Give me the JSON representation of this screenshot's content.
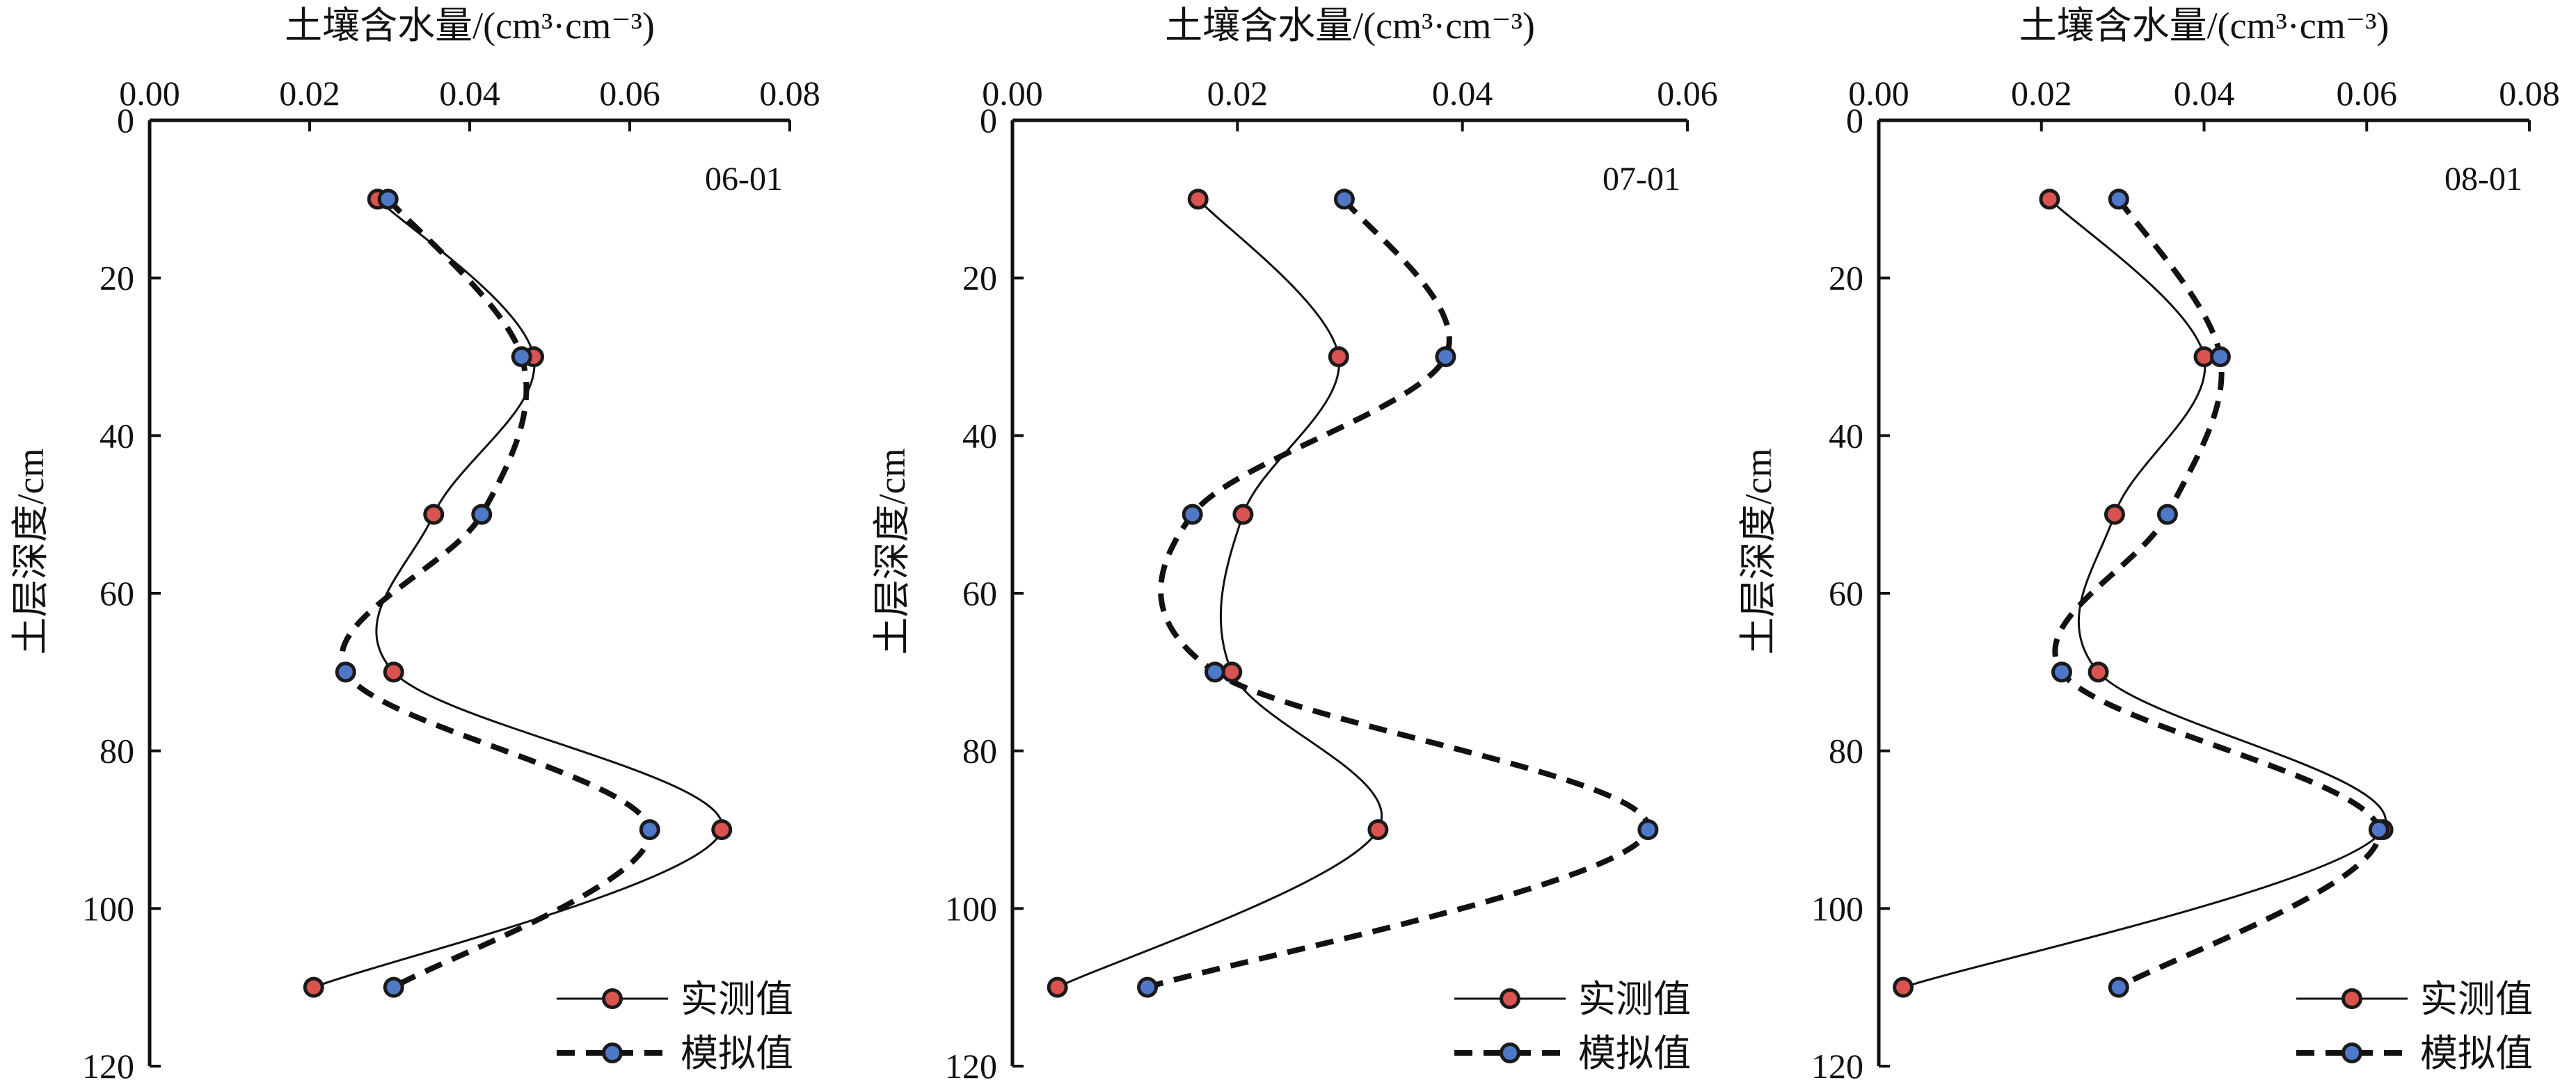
{
  "colors": {
    "observed": "#d9534f",
    "simulated": "#4f78c8",
    "axis": "#111111"
  },
  "chart_data": [
    {
      "type": "line",
      "panel_label": "06-01",
      "xlabel": "土壤含水量/(cm³·cm⁻³)",
      "ylabel": "土层深度/cm",
      "xlim": [
        0,
        0.08
      ],
      "ylim": [
        0,
        120
      ],
      "y_inverted": true,
      "x_ticks": [
        "0.00",
        "0.02",
        "0.04",
        "0.06",
        "0.08"
      ],
      "y_ticks": [
        "0",
        "20",
        "40",
        "60",
        "80",
        "100",
        "120"
      ],
      "x_axis_position": "top",
      "legend_position": "bottom-right",
      "series": [
        {
          "name": "实测值",
          "style": "solid",
          "color": "#d9534f",
          "points": [
            {
              "x": 0.0285,
              "y": 10
            },
            {
              "x": 0.048,
              "y": 30
            },
            {
              "x": 0.0355,
              "y": 50
            },
            {
              "x": 0.0305,
              "y": 70
            },
            {
              "x": 0.0715,
              "y": 90
            },
            {
              "x": 0.0205,
              "y": 110
            }
          ]
        },
        {
          "name": "模拟值",
          "style": "dashed",
          "color": "#4f78c8",
          "points": [
            {
              "x": 0.0298,
              "y": 10
            },
            {
              "x": 0.0465,
              "y": 30
            },
            {
              "x": 0.0415,
              "y": 50
            },
            {
              "x": 0.0245,
              "y": 70
            },
            {
              "x": 0.0625,
              "y": 90
            },
            {
              "x": 0.0305,
              "y": 110
            }
          ]
        }
      ]
    },
    {
      "type": "line",
      "panel_label": "07-01",
      "xlabel": "土壤含水量/(cm³·cm⁻³)",
      "ylabel": "土层深度/cm",
      "xlim": [
        0,
        0.06
      ],
      "ylim": [
        0,
        120
      ],
      "y_inverted": true,
      "x_ticks": [
        "0.00",
        "0.02",
        "0.04",
        "0.06"
      ],
      "y_ticks": [
        "0",
        "20",
        "40",
        "60",
        "80",
        "100",
        "120"
      ],
      "x_axis_position": "top",
      "legend_position": "bottom-right",
      "series": [
        {
          "name": "实测值",
          "style": "solid",
          "color": "#d9534f",
          "points": [
            {
              "x": 0.0165,
              "y": 10
            },
            {
              "x": 0.029,
              "y": 30
            },
            {
              "x": 0.0205,
              "y": 50
            },
            {
              "x": 0.0195,
              "y": 70
            },
            {
              "x": 0.0325,
              "y": 90
            },
            {
              "x": 0.004,
              "y": 110
            }
          ]
        },
        {
          "name": "模拟值",
          "style": "dashed",
          "color": "#4f78c8",
          "points": [
            {
              "x": 0.0295,
              "y": 10
            },
            {
              "x": 0.0385,
              "y": 30
            },
            {
              "x": 0.016,
              "y": 50
            },
            {
              "x": 0.018,
              "y": 70
            },
            {
              "x": 0.0565,
              "y": 90
            },
            {
              "x": 0.012,
              "y": 110
            }
          ]
        }
      ]
    },
    {
      "type": "line",
      "panel_label": "08-01",
      "xlabel": "土壤含水量/(cm³·cm⁻³)",
      "ylabel": "土层深度/cm",
      "xlim": [
        0,
        0.08
      ],
      "ylim": [
        0,
        120
      ],
      "y_inverted": true,
      "x_ticks": [
        "0.00",
        "0.02",
        "0.04",
        "0.06",
        "0.08"
      ],
      "y_ticks": [
        "0",
        "20",
        "40",
        "60",
        "80",
        "100",
        "120"
      ],
      "x_axis_position": "top",
      "legend_position": "bottom-right",
      "series": [
        {
          "name": "实测值",
          "style": "solid",
          "color": "#d9534f",
          "points": [
            {
              "x": 0.021,
              "y": 10
            },
            {
              "x": 0.04,
              "y": 30
            },
            {
              "x": 0.029,
              "y": 50
            },
            {
              "x": 0.027,
              "y": 70
            },
            {
              "x": 0.062,
              "y": 90
            },
            {
              "x": 0.003,
              "y": 110
            }
          ]
        },
        {
          "name": "模拟值",
          "style": "dashed",
          "color": "#4f78c8",
          "points": [
            {
              "x": 0.0295,
              "y": 10
            },
            {
              "x": 0.042,
              "y": 30
            },
            {
              "x": 0.0355,
              "y": 50
            },
            {
              "x": 0.0225,
              "y": 70
            },
            {
              "x": 0.0615,
              "y": 90
            },
            {
              "x": 0.0295,
              "y": 110
            }
          ]
        }
      ]
    }
  ]
}
